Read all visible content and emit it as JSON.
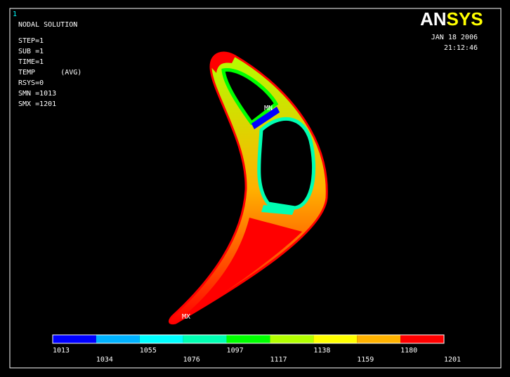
{
  "window_number": "1",
  "header_lines": [
    "NODAL SOLUTION",
    "STEP=1",
    "SUB =1",
    "TIME=1",
    "TEMP      (AVG)",
    "RSYS=0",
    "SMN =1013",
    "SMX =1201"
  ],
  "logo": "ANSYS",
  "date": "JAN 18 2006",
  "time": "21:12:46",
  "min_marker": "MN",
  "max_marker": "MX",
  "legend": {
    "labels": [
      "1013",
      "1034",
      "1055",
      "1076",
      "1097",
      "1117",
      "1138",
      "1159",
      "1180",
      "1201"
    ],
    "colors": [
      "#0000ff",
      "#00b2ff",
      "#00ffff",
      "#00ffb2",
      "#00ff00",
      "#b2ff00",
      "#ffff00",
      "#ffb200",
      "#ff0000"
    ]
  }
}
